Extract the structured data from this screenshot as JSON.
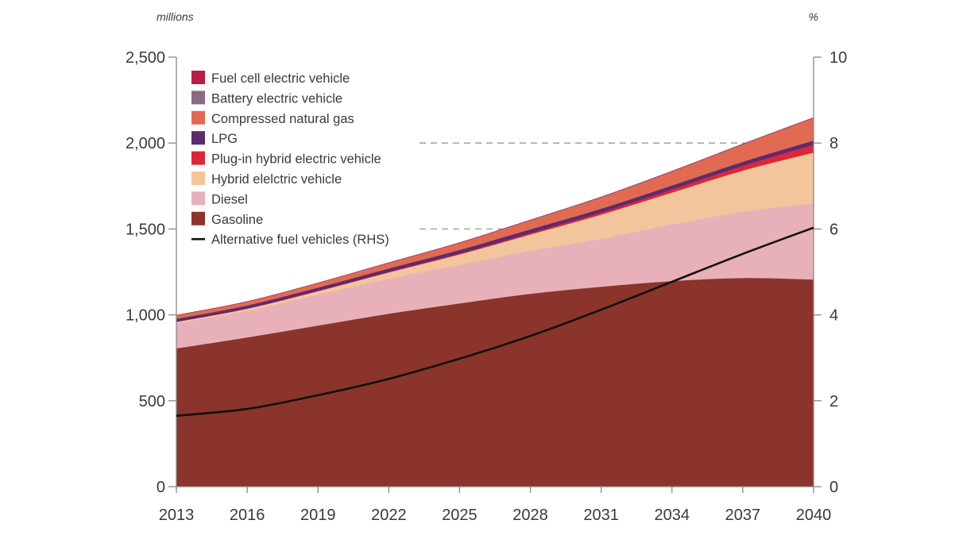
{
  "chart_data": {
    "type": "area",
    "stacked": true,
    "title": "",
    "y_left_unit": "millions",
    "y_right_unit": "%",
    "x": [
      2013,
      2016,
      2019,
      2022,
      2025,
      2028,
      2031,
      2034,
      2037,
      2040
    ],
    "x_ticks": [
      "2013",
      "2016",
      "2019",
      "2022",
      "2025",
      "2028",
      "2031",
      "2034",
      "2037",
      "2040"
    ],
    "ylim_left": [
      0,
      2500
    ],
    "y_left_ticks": [
      "0",
      "500",
      "1,000",
      "1,500",
      "2,000",
      "2,500"
    ],
    "ylim_right": [
      0,
      10
    ],
    "y_right_ticks": [
      "0",
      "2",
      "4",
      "6",
      "8",
      "10"
    ],
    "grid": false,
    "reference_lines_right": [
      6,
      8
    ],
    "legend_position": "top-left",
    "series": [
      {
        "name": "Gasoline",
        "color": "#8b342b",
        "values": [
          805,
          869,
          938,
          1007,
          1067,
          1123,
          1164,
          1197,
          1215,
          1206
        ]
      },
      {
        "name": "Diesel",
        "color": "#e8b1ba",
        "values": [
          147,
          155,
          180,
          205,
          225,
          250,
          280,
          330,
          385,
          444
        ]
      },
      {
        "name": "Hybrid elelctric vehicle",
        "color": "#f3c59c",
        "values": [
          8,
          12,
          20,
          35,
          60,
          95,
          140,
          185,
          240,
          295
        ]
      },
      {
        "name": "Plug-in hybrid electric vehicle",
        "color": "#d9283a",
        "values": [
          0,
          1,
          2,
          3,
          5,
          8,
          12,
          18,
          28,
          46
        ]
      },
      {
        "name": "LPG",
        "color": "#5f2a6e",
        "values": [
          17,
          18,
          19,
          20,
          21,
          22,
          22,
          23,
          23,
          24
        ]
      },
      {
        "name": "Compressed natural gas",
        "color": "#e06b52",
        "values": [
          20,
          22,
          26,
          32,
          40,
          52,
          65,
          80,
          100,
          130
        ]
      },
      {
        "name": "Battery electric vehicle",
        "color": "#8a6a84",
        "values": [
          1,
          1,
          1,
          2,
          2,
          2,
          3,
          3,
          3,
          3
        ]
      },
      {
        "name": "Fuel cell electric vehicle",
        "color": "#b81c48",
        "values": [
          0,
          0,
          0,
          0,
          1,
          1,
          1,
          1,
          1,
          1
        ]
      }
    ],
    "line_series": {
      "name": "Alternative fuel vehicles (RHS)",
      "axis": "right",
      "color": "#111111",
      "values": [
        1.65,
        1.81,
        2.13,
        2.51,
        2.98,
        3.51,
        4.12,
        4.77,
        5.42,
        6.03
      ]
    },
    "legend_order": [
      "Fuel cell electric vehicle",
      "Battery electric vehicle",
      "Compressed natural gas",
      "LPG",
      "Plug-in hybrid electric vehicle",
      "Hybrid elelctric vehicle",
      "Diesel",
      "Gasoline",
      "Alternative fuel vehicles (RHS)"
    ]
  }
}
